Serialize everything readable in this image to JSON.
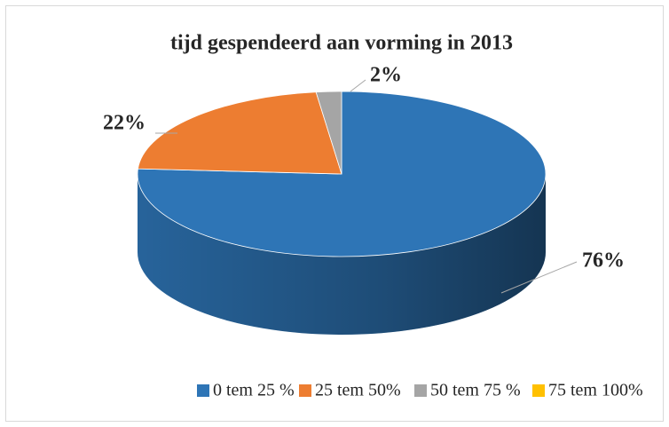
{
  "chart_data": {
    "type": "pie",
    "title": "tijd gespendeerd aan vorming in 2013",
    "categories": [
      "0 tem 25 %",
      "25 tem 50%",
      "50 tem 75 %",
      "75 tem 100%"
    ],
    "values": [
      76,
      22,
      2,
      0
    ],
    "value_labels": [
      "76%",
      "22%",
      "2%",
      null
    ],
    "colors": [
      "#2e75b6",
      "#ed7d31",
      "#a5a5a5",
      "#ffc000"
    ],
    "legend": "bottom"
  }
}
